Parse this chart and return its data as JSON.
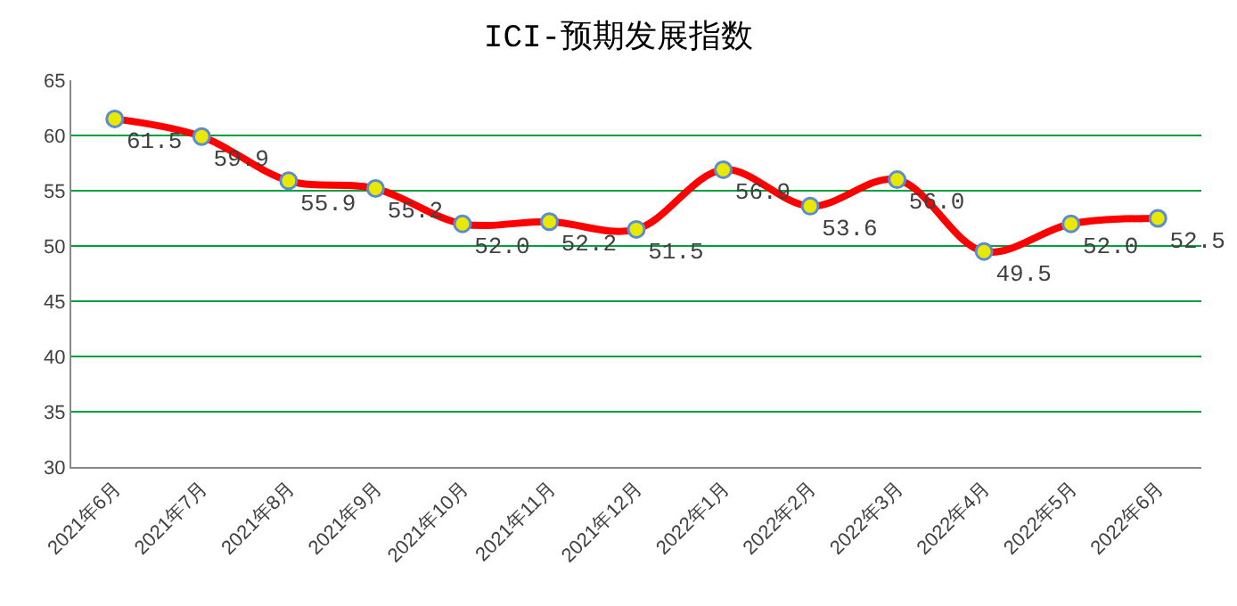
{
  "chart_data": {
    "type": "line",
    "title": "ICI-预期发展指数",
    "categories": [
      "2021年6月",
      "2021年7月",
      "2021年8月",
      "2021年9月",
      "2021年10月",
      "2021年11月",
      "2021年12月",
      "2022年1月",
      "2022年2月",
      "2022年3月",
      "2022年4月",
      "2022年5月",
      "2022年6月"
    ],
    "series": [
      {
        "color": "#ff0000",
        "values": [
          61.5,
          59.9,
          55.9,
          55.2,
          52.0,
          52.2,
          51.5,
          56.9,
          53.6,
          56.0,
          49.5,
          52.0,
          52.5
        ],
        "value_labels": [
          "61.5",
          "59.9",
          "55.9",
          "55.2",
          "52.0",
          "52.2",
          "51.5",
          "56.9",
          "53.6",
          "56.0",
          "49.5",
          "52.0",
          "52.5"
        ]
      }
    ],
    "ylim": [
      30,
      65
    ],
    "yticks": [
      30,
      35,
      40,
      45,
      50,
      55,
      60,
      65
    ],
    "grid": "y",
    "legend": false,
    "marker": "circle",
    "line_style": "solid"
  }
}
